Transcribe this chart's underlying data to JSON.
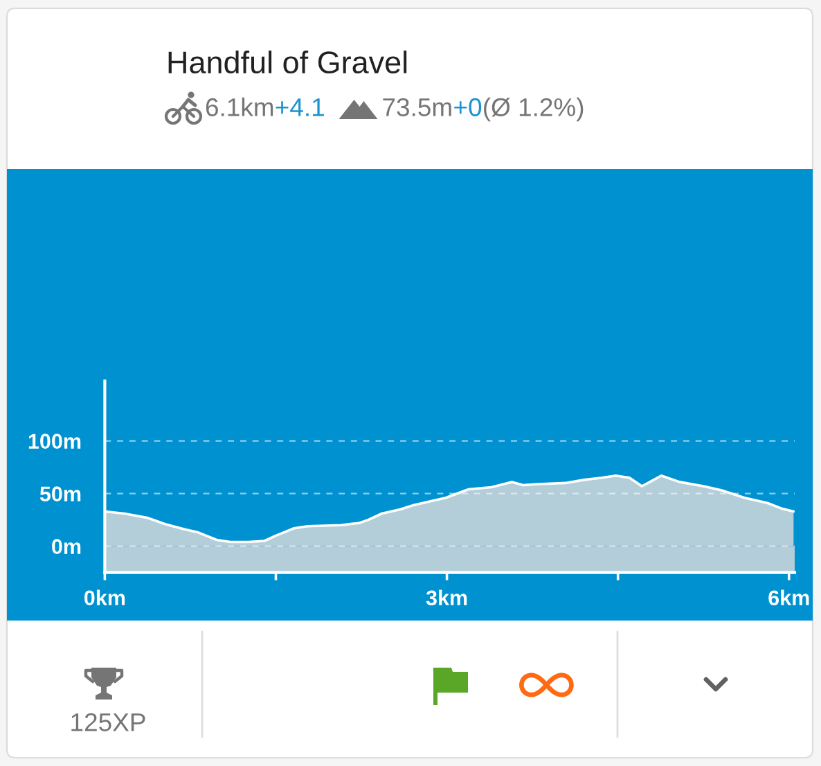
{
  "chart_data": {
    "type": "area",
    "title": "Handful of Gravel",
    "annotations": [
      "6.1km",
      "+4.1",
      "73.5m",
      "+0",
      "(Ø 1.2%)",
      "125XP"
    ],
    "x": [
      0,
      0.17,
      0.37,
      0.53,
      0.7,
      0.82,
      0.98,
      1.1,
      1.26,
      1.4,
      1.5,
      1.66,
      1.78,
      2.07,
      2.23,
      2.31,
      2.43,
      2.59,
      2.71,
      2.99,
      3.19,
      3.39,
      3.57,
      3.67,
      3.8,
      4.04,
      4.2,
      4.36,
      4.48,
      4.6,
      4.71,
      4.78,
      4.88,
      5.04,
      5.25,
      5.41,
      5.61,
      5.81,
      5.93,
      6.04
    ],
    "series": [
      {
        "color": "#b3cdd9",
        "values": [
          33,
          31,
          27,
          21,
          16,
          13,
          6,
          4,
          4,
          5,
          10,
          17,
          19,
          20,
          22,
          25,
          31,
          35,
          39,
          46,
          54,
          56,
          61,
          58,
          59,
          60,
          63,
          65,
          67,
          65,
          57,
          61,
          67,
          61,
          57,
          53,
          46,
          41,
          36,
          33
        ]
      }
    ],
    "bands": [
      {
        "axis": "y",
        "from": -25,
        "to": 0,
        "color": "#b3cdd9"
      }
    ],
    "xlim": [
      0,
      6.05
    ],
    "xticks": [
      {
        "value": 0,
        "label": "0km"
      },
      {
        "value": 1.5,
        "label": null
      },
      {
        "value": 3,
        "label": "3km"
      },
      {
        "value": 4.5,
        "label": null
      },
      {
        "value": 6,
        "label": "6km"
      }
    ],
    "ylim": [
      -25,
      157
    ],
    "yticks": [
      {
        "value": 0,
        "label": "0m"
      },
      {
        "value": 50,
        "label": "50m"
      },
      {
        "value": 100,
        "label": "100m"
      }
    ],
    "grid": "y"
  }
}
